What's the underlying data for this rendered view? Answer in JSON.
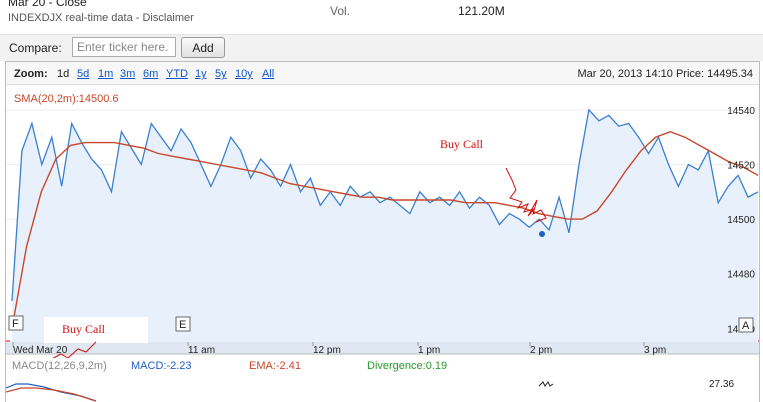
{
  "header": {
    "close_label": "Mar 20 - Close",
    "index_label": "INDEXDJX real-time data - Disclaimer",
    "vol_label": "Vol.",
    "vol_value": "121.20M"
  },
  "compare": {
    "label": "Compare:",
    "placeholder": "Enter ticker here.",
    "add_label": "Add"
  },
  "zoom": {
    "label": "Zoom:",
    "options": [
      "1d",
      "5d",
      "1m",
      "3m",
      "6m",
      "YTD",
      "1y",
      "5y",
      "10y",
      "All"
    ],
    "selected": "1d",
    "readout": "Mar 20, 2013 14:10 Price: 14495.34"
  },
  "chart": {
    "sma_label": "SMA(20,2m):14500.6",
    "annotation_buy_call": "Buy Call",
    "flag_f": "F",
    "flag_e": "E",
    "flag_a": "A",
    "x_labels": [
      "Wed Mar 20",
      "11 am",
      "12 pm",
      "1 pm",
      "2 pm",
      "3 pm"
    ],
    "y_labels": [
      "14540",
      "14520",
      "14500",
      "14480",
      "14460"
    ],
    "colors": {
      "price_line": "#3a7fd0",
      "sma_line": "#c8462a",
      "fill": "#e8f1fb",
      "annot": "#d01010"
    }
  },
  "macd": {
    "label": "MACD(12,26,9,2m)",
    "macd_value": "MACD:-2.23",
    "ema_value": "EMA:-2.41",
    "divergence_value": "Divergence:0.19",
    "y_label": "27.36"
  },
  "chart_data": {
    "type": "line",
    "title": "",
    "xlabel": "",
    "ylabel": "",
    "ylim": [
      14455,
      14548
    ],
    "x_ticks": [
      "Wed Mar 20",
      "11 am",
      "12 pm",
      "1 pm",
      "2 pm",
      "3 pm"
    ],
    "series": [
      {
        "values": [
          14470,
          14525,
          14535,
          14520,
          14530,
          14512,
          14535,
          14528,
          14522,
          14518,
          14510,
          14532,
          14526,
          14520,
          14535,
          14530,
          14525,
          14533,
          14528,
          14520,
          14512,
          14520,
          14530,
          14525,
          14515,
          14522,
          14518,
          14512,
          14520,
          14510,
          14515,
          14505,
          14510,
          14505,
          14512,
          14508,
          14510,
          14506,
          14508,
          14505,
          14502,
          14510,
          14506,
          14508,
          14505,
          14510,
          14504,
          14508,
          14505,
          14498,
          14502,
          14500,
          14497,
          14500,
          14496,
          14508,
          14495,
          14520,
          14540,
          14536,
          14538,
          14534,
          14535,
          14530,
          14524,
          14530,
          14520,
          14512,
          14520,
          14518,
          14525,
          14506,
          14512,
          14516,
          14508,
          14510
        ]
      },
      {
        "name": "SMA(20,2m)",
        "values": [
          14460,
          14490,
          14510,
          14522,
          14527,
          14528,
          14528,
          14528,
          14527,
          14526,
          14524,
          14523,
          14522,
          14521,
          14520,
          14519,
          14518,
          14517,
          14515,
          14513,
          14512,
          14511,
          14510,
          14509,
          14508,
          14508,
          14507,
          14507,
          14507,
          14507,
          14507,
          14506,
          14506,
          14506,
          14505,
          14504,
          14502,
          14501,
          14500,
          14500,
          14503,
          14510,
          14518,
          14525,
          14530,
          14532,
          14530,
          14527,
          14524,
          14521,
          14519,
          14516
        ]
      }
    ]
  }
}
